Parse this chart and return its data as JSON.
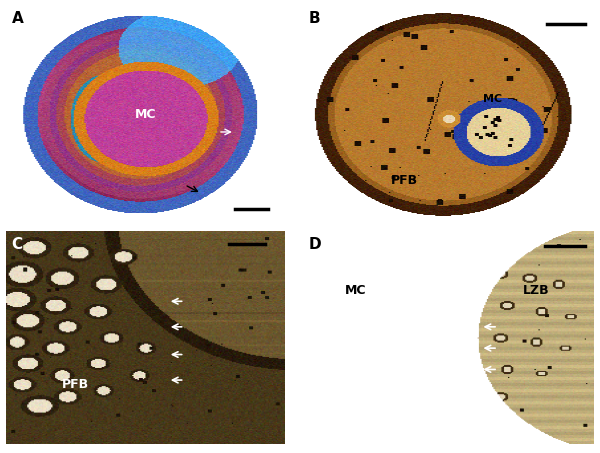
{
  "figure_width": 6.0,
  "figure_height": 4.53,
  "dpi": 100,
  "bg_color": "#ffffff",
  "panel_A": {
    "label": "A",
    "label_color": "black",
    "annotation_MC": {
      "text": "MC",
      "color": "white",
      "fontsize": 9
    },
    "arrow_color": "black",
    "arrowhead_color": "white",
    "scalebar_color": "black"
  },
  "panel_B": {
    "label": "B",
    "label_color": "black",
    "annotation_PFB": {
      "text": "PFB",
      "color": "black",
      "fontsize": 9
    },
    "annotation_MC": {
      "text": "MC",
      "color": "black",
      "fontsize": 8
    },
    "scalebar_color": "black"
  },
  "panel_C": {
    "label": "C",
    "label_color": "white",
    "annotation_PFB": {
      "text": "PFB",
      "color": "white",
      "fontsize": 9
    },
    "arrowhead_color": "white",
    "scalebar_color": "black"
  },
  "panel_D": {
    "label": "D",
    "label_color": "black",
    "annotation_MC": {
      "text": "MC",
      "color": "black",
      "fontsize": 9
    },
    "annotation_LZB": {
      "text": "LZB",
      "color": "black",
      "fontsize": 9
    },
    "arrowhead_color": "white",
    "scalebar_color": "black"
  }
}
